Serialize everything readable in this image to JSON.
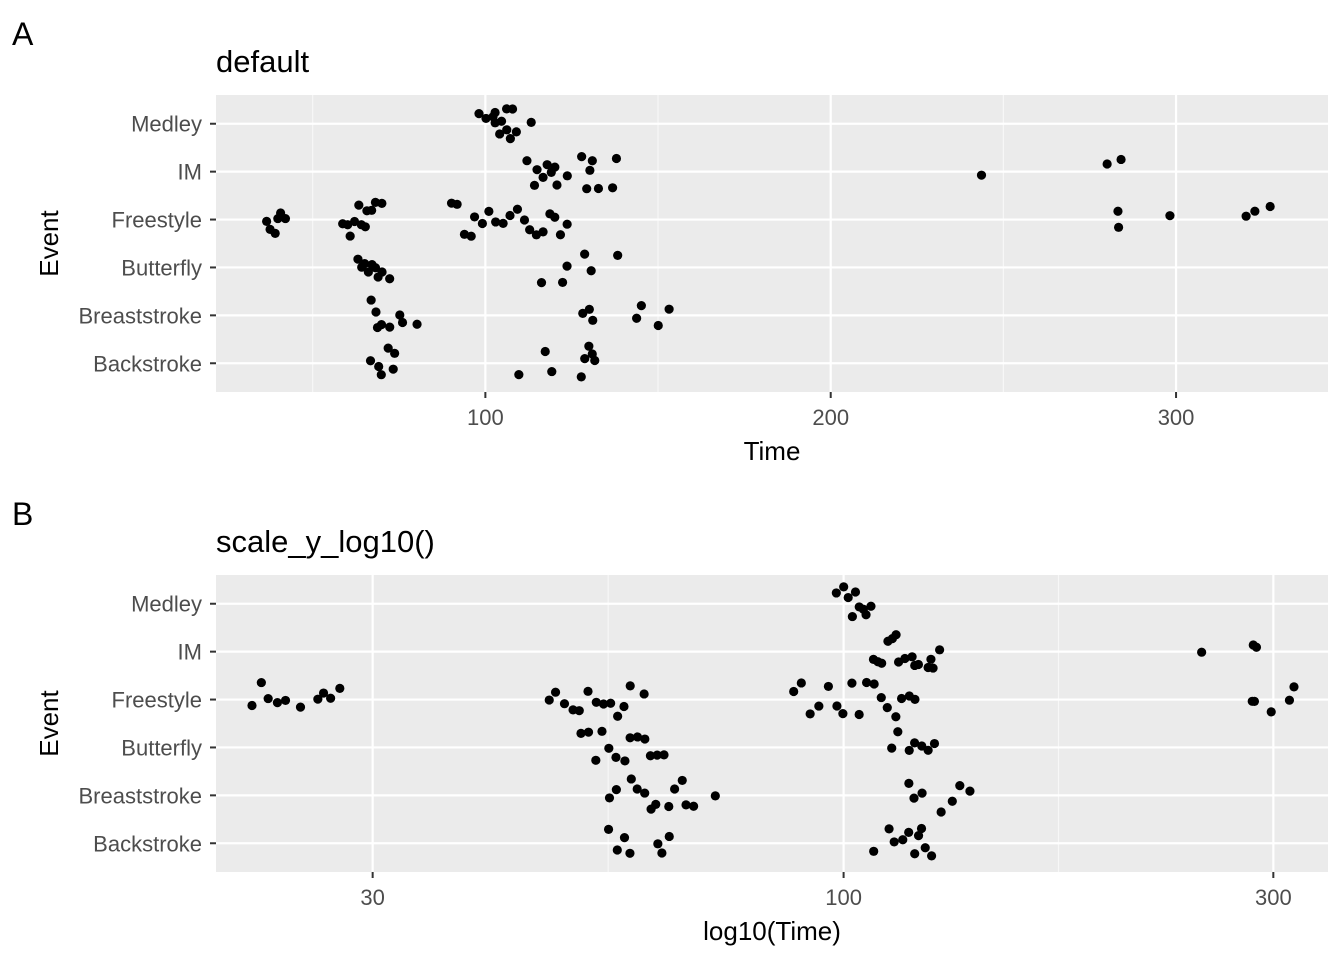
{
  "panels": [
    {
      "letter": "A",
      "title": "default",
      "chart_data": {
        "type": "scatter",
        "title": "default",
        "xlabel": "Time",
        "ylabel": "Event",
        "x_scale": "linear",
        "xlim": [
          22,
          344
        ],
        "x_ticks": [
          100,
          200,
          300
        ],
        "x_tick_labels": [
          "100",
          "200",
          "300"
        ],
        "categories": [
          "Backstroke",
          "Breaststroke",
          "Butterfly",
          "Freestyle",
          "IM",
          "Medley"
        ],
        "grid": true,
        "series": [
          {
            "category": "Medley",
            "x": [
              98,
              100,
              102,
              103,
              103,
              104,
              105,
              106,
              106,
              107,
              108,
              109,
              113
            ]
          },
          {
            "category": "IM",
            "x": [
              112,
              114,
              115,
              117,
              118,
              119,
              120,
              121,
              124,
              128,
              129,
              130,
              131,
              133,
              137,
              138,
              244,
              280,
              284
            ]
          },
          {
            "category": "Freestyle",
            "x": [
              37,
              38,
              39,
              40,
              41,
              42,
              59,
              60,
              61,
              62,
              63,
              64,
              65,
              66,
              67,
              68,
              70,
              90,
              92,
              94,
              96,
              97,
              99,
              101,
              103,
              105,
              107,
              109,
              111,
              113,
              115,
              117,
              119,
              120,
              122,
              124,
              283,
              283,
              298,
              320,
              323,
              327
            ]
          },
          {
            "category": "Butterfly",
            "x": [
              63,
              64,
              65,
              66,
              67,
              68,
              69,
              70,
              72,
              116,
              122,
              124,
              129,
              131,
              138
            ]
          },
          {
            "category": "Breaststroke",
            "x": [
              67,
              68,
              69,
              70,
              72,
              75,
              76,
              80,
              128,
              130,
              131,
              144,
              145,
              150,
              153
            ]
          },
          {
            "category": "Backstroke",
            "x": [
              67,
              69,
              70,
              72,
              73,
              74,
              110,
              117,
              119,
              128,
              129,
              130,
              131,
              132
            ]
          }
        ]
      }
    },
    {
      "letter": "B",
      "title": "scale_y_log10()",
      "chart_data": {
        "type": "scatter",
        "title": "scale_y_log10()",
        "xlabel": "log10(Time)",
        "ylabel": "Event",
        "x_scale": "log10",
        "xlim": [
          20.1,
          345
        ],
        "x_ticks": [
          30,
          100,
          300
        ],
        "x_tick_labels": [
          "30",
          "100",
          "300"
        ],
        "categories": [
          "Backstroke",
          "Breaststroke",
          "Butterfly",
          "Freestyle",
          "IM",
          "Medley"
        ],
        "grid": true,
        "series": [
          {
            "category": "Medley",
            "x": [
              98,
              100,
              101,
              102,
              103,
              104,
              105,
              106,
              107
            ]
          },
          {
            "category": "IM",
            "x": [
              108,
              109,
              110,
              112,
              113,
              114,
              115,
              117,
              119,
              120,
              121,
              124,
              125,
              126,
              128,
              250,
              285,
              288
            ]
          },
          {
            "category": "Freestyle",
            "x": [
              22,
              22.5,
              23,
              23.5,
              24,
              25,
              26,
              26.5,
              27,
              27.5,
              47,
              48,
              49,
              50,
              51,
              52,
              53,
              54,
              55,
              56,
              57,
              58,
              60,
              88,
              90,
              92,
              94,
              96,
              98,
              100,
              102,
              104,
              106,
              108,
              110,
              112,
              114,
              116,
              118,
              120,
              285,
              285,
              298,
              312,
              316
            ]
          },
          {
            "category": "Butterfly",
            "x": [
              51,
              52,
              53,
              54,
              55,
              56,
              57,
              58,
              59,
              60,
              61,
              62,
              63,
              113,
              115,
              118,
              120,
              122,
              124,
              126
            ]
          },
          {
            "category": "Breaststroke",
            "x": [
              55,
              56,
              58,
              59,
              60,
              61,
              62,
              64,
              65,
              66,
              67,
              68,
              72,
              118,
              120,
              122,
              128,
              132,
              135,
              138
            ]
          },
          {
            "category": "Backstroke",
            "x": [
              55,
              56,
              57,
              58,
              62,
              63,
              64,
              108,
              112,
              114,
              116,
              118,
              120,
              121,
              122,
              123,
              125
            ]
          }
        ]
      }
    }
  ]
}
